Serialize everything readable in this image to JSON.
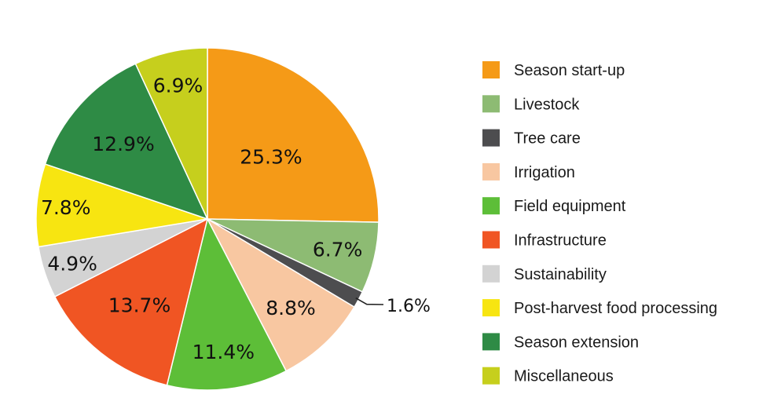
{
  "chart_data": {
    "type": "pie",
    "start_angle_deg": 90,
    "direction": "clockwise",
    "legend_position": "right",
    "slices": [
      {
        "label": "Season start-up",
        "value": 25.3,
        "display": "25.3%",
        "color": "#F59A17"
      },
      {
        "label": "Livestock",
        "value": 6.7,
        "display": "6.7%",
        "color": "#8DBB73"
      },
      {
        "label": "Tree care",
        "value": 1.6,
        "display": "1.6%",
        "color": "#4D4D4F"
      },
      {
        "label": "Irrigation",
        "value": 8.8,
        "display": "8.8%",
        "color": "#F8C7A1"
      },
      {
        "label": "Field equipment",
        "value": 11.4,
        "display": "11.4%",
        "color": "#5DBE38"
      },
      {
        "label": "Infrastructure",
        "value": 13.7,
        "display": "13.7%",
        "color": "#F05523"
      },
      {
        "label": "Sustainability",
        "value": 4.9,
        "display": "4.9%",
        "color": "#D3D3D3"
      },
      {
        "label": "Post-harvest food processing",
        "value": 7.8,
        "display": "7.8%",
        "color": "#F7E511"
      },
      {
        "label": "Season extension",
        "value": 12.9,
        "display": "12.9%",
        "color": "#2E8B45"
      },
      {
        "label": "Miscellaneous",
        "value": 6.9,
        "display": "6.9%",
        "color": "#C6CF1D"
      }
    ]
  }
}
